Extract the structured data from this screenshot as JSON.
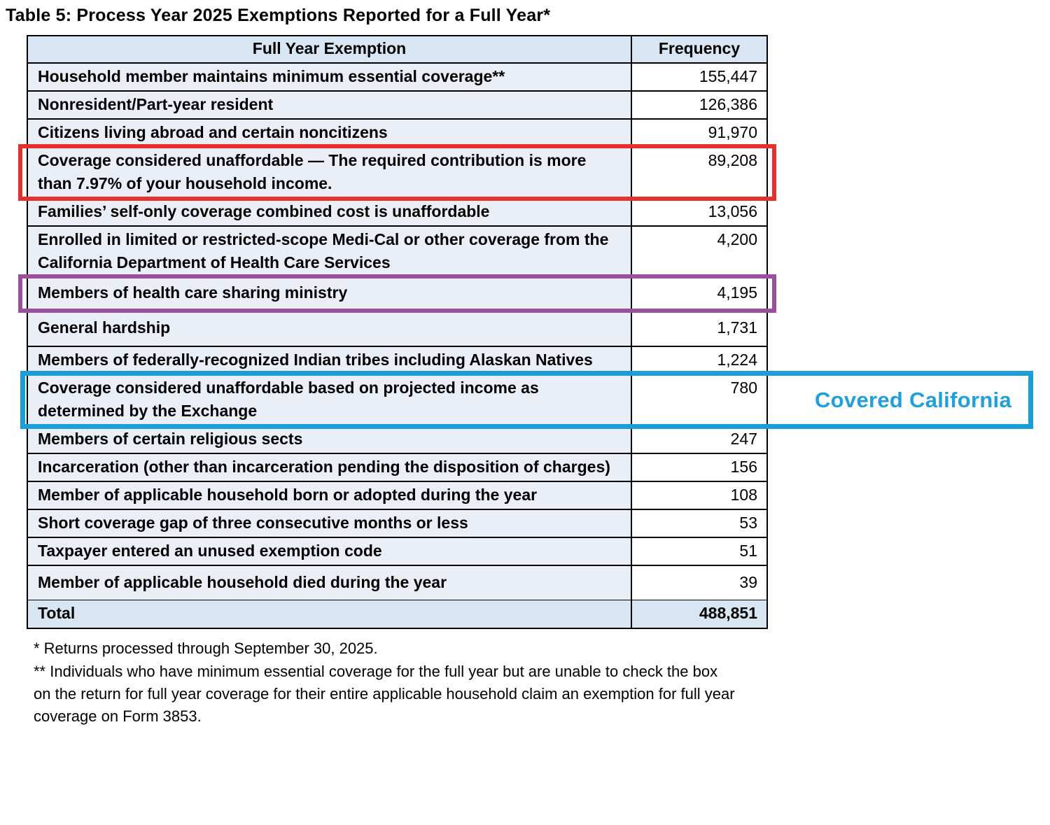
{
  "title": "Table 5: Process Year 2025 Exemptions Reported for a Full Year*",
  "colors": {
    "red": "#e4312b",
    "purple": "#9c4f9e",
    "blue": "#1b9dd9",
    "blue_text": "#1f9fdd",
    "header_bg": "#d8e5f2",
    "row_bg": "#e9eef7"
  },
  "table": {
    "headers": {
      "exemption": "Full Year Exemption",
      "frequency": "Frequency"
    },
    "rows": [
      {
        "label": "Household member maintains minimum essential coverage**",
        "value": "155,447",
        "highlight": null
      },
      {
        "label": "Nonresident/Part-year resident",
        "value": "126,386",
        "highlight": null
      },
      {
        "label": "Citizens living abroad and certain noncitizens",
        "value": "91,970",
        "highlight": null
      },
      {
        "label": "Coverage considered unaffordable — The required contribution is more than 7.97% of your household income.",
        "value": "89,208",
        "highlight": "red"
      },
      {
        "label": "Families’ self-only coverage combined cost is unaffordable",
        "value": "13,056",
        "highlight": null
      },
      {
        "label": "Enrolled in limited or restricted-scope Medi-Cal or other coverage from the California Department of Health Care Services",
        "value": "4,200",
        "highlight": null
      },
      {
        "label": "Members of health care sharing ministry",
        "value": "4,195",
        "highlight": "purple"
      },
      {
        "label": "General hardship",
        "value": "1,731",
        "highlight": null
      },
      {
        "label": "Members of federally-recognized Indian tribes including Alaskan Natives",
        "value": "1,224",
        "highlight": null
      },
      {
        "label": "Coverage considered unaffordable based on projected income as determined by the Exchange",
        "value": "780",
        "highlight": "blue"
      },
      {
        "label": "Members of certain religious sects",
        "value": "247",
        "highlight": null
      },
      {
        "label": "Incarceration (other than incarceration pending the disposition of charges)",
        "value": "156",
        "highlight": null
      },
      {
        "label": "Member of applicable household born or adopted during the year",
        "value": "108",
        "highlight": null
      },
      {
        "label": "Short coverage gap of three consecutive months or less",
        "value": "53",
        "highlight": null
      },
      {
        "label": "Taxpayer entered an unused exemption code",
        "value": "51",
        "highlight": null
      },
      {
        "label": "Member of applicable household died during the year",
        "value": "39",
        "highlight": null
      }
    ],
    "total": {
      "label": "Total",
      "value": "488,851"
    }
  },
  "annotation": {
    "label": "Covered California"
  },
  "footnotes": [
    "* Returns processed through September 30, 2025.",
    "** Individuals who have minimum essential coverage for the full year but are unable to check the box on the return for full year coverage for their entire applicable household claim an exemption for full year coverage on Form 3853."
  ]
}
